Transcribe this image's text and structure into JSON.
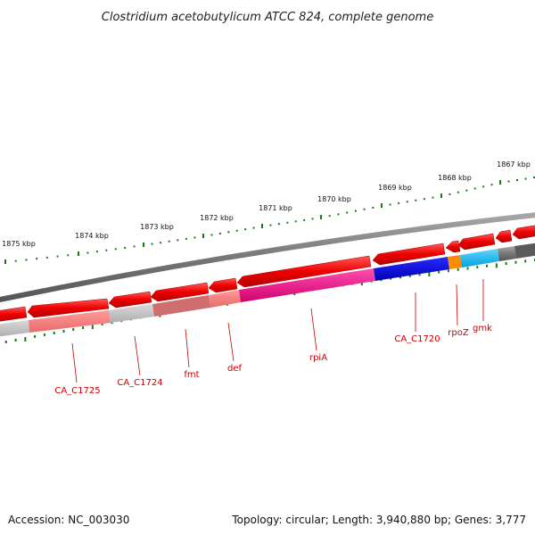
{
  "title": "Clostridium acetobutylicum ATCC 824, complete genome",
  "footer": {
    "accession": "Accession: NC_003030",
    "summary": "Topology: circular; Length: 3,940,880 bp; Genes: 3,777"
  },
  "kbp_labels": [
    "1875 kbp",
    "1874 kbp",
    "1873 kbp",
    "1872 kbp",
    "1871 kbp",
    "1870 kbp",
    "1869 kbp",
    "1868 kbp",
    "1867 kbp"
  ],
  "gene_labels": [
    "CA_C1725",
    "CA_C1724",
    "fmt",
    "def",
    "rpiA",
    "CA_C1720",
    "rpoZ",
    "gmk"
  ],
  "colors": {
    "backbone": "#6e6e6e",
    "forward_gene": "#ee0000",
    "tick": "#1a7a1a",
    "label": "#cc0000",
    "rpiA": "#e6007e",
    "CA_C1720": "#0000dd",
    "rpoZ": "#ff8c00",
    "gmk": "#00b4ec"
  }
}
